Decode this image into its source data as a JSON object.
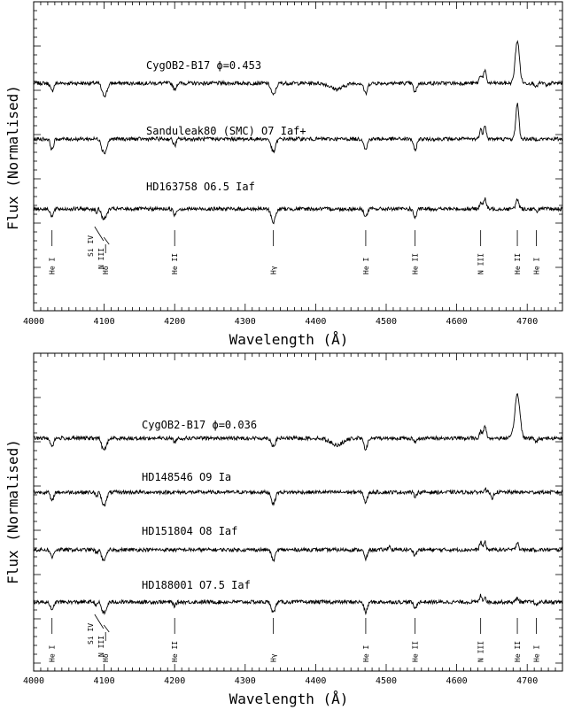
{
  "chart_data": [
    {
      "type": "line",
      "xlabel": "Wavelength (Å)",
      "ylabel": "Flux (Normalised)",
      "xlim": [
        4000,
        4750
      ],
      "x_ticks": [
        "4000",
        "4100",
        "4200",
        "4300",
        "4400",
        "4500",
        "4600",
        "4700"
      ],
      "grid": false,
      "series": [
        {
          "name": "CygOB2-B17 ϕ=0.453",
          "continuum": 1.0,
          "features": [
            {
              "x": 4026,
              "depth": -0.6,
              "width": 2.2
            },
            {
              "x": 4097,
              "depth": -0.25,
              "width": 1.6
            },
            {
              "x": 4101,
              "depth": -0.9,
              "width": 3.2
            },
            {
              "x": 4200,
              "depth": -0.5,
              "width": 2.0
            },
            {
              "x": 4340,
              "depth": -0.9,
              "width": 3.2
            },
            {
              "x": 4430,
              "depth": -0.45,
              "width": 9.0
            },
            {
              "x": 4471,
              "depth": -0.8,
              "width": 2.4
            },
            {
              "x": 4541,
              "depth": -0.7,
              "width": 2.2
            },
            {
              "x": 4634,
              "depth": 0.6,
              "width": 2.0
            },
            {
              "x": 4640,
              "depth": 0.9,
              "width": 2.0
            },
            {
              "x": 4686,
              "depth": 3.2,
              "width": 3.0
            },
            {
              "x": 4713,
              "depth": -0.3,
              "width": 1.6
            },
            {
              "x": 4728,
              "depth": -0.25,
              "width": 1.8
            }
          ]
        },
        {
          "name": "Sanduleak80 (SMC) O7 Iaf+",
          "continuum": 0.0,
          "features": [
            {
              "x": 4026,
              "depth": -0.8,
              "width": 2.2
            },
            {
              "x": 4097,
              "depth": -0.35,
              "width": 1.6
            },
            {
              "x": 4101,
              "depth": -1.0,
              "width": 3.0
            },
            {
              "x": 4200,
              "depth": -0.5,
              "width": 2.0
            },
            {
              "x": 4340,
              "depth": -1.0,
              "width": 3.0
            },
            {
              "x": 4471,
              "depth": -0.8,
              "width": 2.2
            },
            {
              "x": 4541,
              "depth": -0.9,
              "width": 2.2
            },
            {
              "x": 4634,
              "depth": 0.7,
              "width": 1.8
            },
            {
              "x": 4640,
              "depth": 1.1,
              "width": 1.8
            },
            {
              "x": 4686,
              "depth": 2.7,
              "width": 2.2
            }
          ]
        },
        {
          "name": "HD163758 O6.5 Iaf",
          "continuum": -1.0,
          "features": [
            {
              "x": 4026,
              "depth": -0.6,
              "width": 2.0
            },
            {
              "x": 4089,
              "depth": -0.3,
              "width": 1.4
            },
            {
              "x": 4097,
              "depth": -0.35,
              "width": 1.6
            },
            {
              "x": 4101,
              "depth": -0.7,
              "width": 2.8
            },
            {
              "x": 4200,
              "depth": -0.45,
              "width": 2.0
            },
            {
              "x": 4340,
              "depth": -1.0,
              "width": 3.0
            },
            {
              "x": 4471,
              "depth": -0.6,
              "width": 2.2
            },
            {
              "x": 4541,
              "depth": -0.65,
              "width": 2.2
            },
            {
              "x": 4634,
              "depth": 0.5,
              "width": 1.8
            },
            {
              "x": 4640,
              "depth": 0.8,
              "width": 1.8
            },
            {
              "x": 4686,
              "depth": 0.7,
              "width": 2.2
            },
            {
              "x": 4713,
              "depth": -0.2,
              "width": 1.6
            }
          ]
        }
      ],
      "line_ids": [
        {
          "x": 4026,
          "label": "He I"
        },
        {
          "x": 4089,
          "label": "Si IV"
        },
        {
          "x": 4097,
          "label": "N III"
        },
        {
          "x": 4102,
          "label": "Hδ"
        },
        {
          "x": 4200,
          "label": "He II"
        },
        {
          "x": 4340,
          "label": "Hγ"
        },
        {
          "x": 4471,
          "label": "He I"
        },
        {
          "x": 4541,
          "label": "He II"
        },
        {
          "x": 4634,
          "label": "N III"
        },
        {
          "x": 4686,
          "label": "He II"
        },
        {
          "x": 4713,
          "label": "He I"
        }
      ]
    },
    {
      "type": "line",
      "xlabel": "Wavelength (Å)",
      "ylabel": "Flux (Normalised)",
      "xlim": [
        4000,
        4750
      ],
      "x_ticks": [
        "4000",
        "4100",
        "4200",
        "4300",
        "4400",
        "4500",
        "4600",
        "4700"
      ],
      "grid": false,
      "series": [
        {
          "name": "CygOB2-B17 ϕ=0.036",
          "continuum": 1.0,
          "features": [
            {
              "x": 4026,
              "depth": -0.6,
              "width": 2.2
            },
            {
              "x": 4097,
              "depth": -0.3,
              "width": 1.6
            },
            {
              "x": 4101,
              "depth": -0.8,
              "width": 3.0
            },
            {
              "x": 4200,
              "depth": -0.3,
              "width": 1.8
            },
            {
              "x": 4340,
              "depth": -0.6,
              "width": 2.8
            },
            {
              "x": 4430,
              "depth": -0.5,
              "width": 9.0
            },
            {
              "x": 4471,
              "depth": -0.8,
              "width": 2.6
            },
            {
              "x": 4541,
              "depth": -0.3,
              "width": 2.2
            },
            {
              "x": 4634,
              "depth": 0.5,
              "width": 1.8
            },
            {
              "x": 4640,
              "depth": 0.9,
              "width": 2.0
            },
            {
              "x": 4686,
              "depth": 3.3,
              "width": 3.6
            },
            {
              "x": 4713,
              "depth": -0.3,
              "width": 1.6
            }
          ]
        },
        {
          "name": "HD148546 O9 Ia",
          "continuum": 0.0,
          "features": [
            {
              "x": 4026,
              "depth": -0.7,
              "width": 2.0
            },
            {
              "x": 4089,
              "depth": -0.4,
              "width": 1.4
            },
            {
              "x": 4097,
              "depth": -0.45,
              "width": 1.6
            },
            {
              "x": 4101,
              "depth": -0.9,
              "width": 2.6
            },
            {
              "x": 4340,
              "depth": -0.9,
              "width": 2.6
            },
            {
              "x": 4471,
              "depth": -0.8,
              "width": 2.2
            },
            {
              "x": 4541,
              "depth": -0.3,
              "width": 1.8
            },
            {
              "x": 4640,
              "depth": 0.3,
              "width": 1.6
            },
            {
              "x": 4650,
              "depth": -0.5,
              "width": 2.0
            }
          ]
        },
        {
          "name": "HD151804  O8 Iaf",
          "continuum": -1.0,
          "features": [
            {
              "x": 4026,
              "depth": -0.6,
              "width": 2.0
            },
            {
              "x": 4089,
              "depth": -0.3,
              "width": 1.4
            },
            {
              "x": 4097,
              "depth": -0.4,
              "width": 1.6
            },
            {
              "x": 4101,
              "depth": -0.7,
              "width": 2.6
            },
            {
              "x": 4340,
              "depth": -0.8,
              "width": 2.6
            },
            {
              "x": 4471,
              "depth": -0.7,
              "width": 2.2
            },
            {
              "x": 4504,
              "depth": 0.3,
              "width": 1.6
            },
            {
              "x": 4541,
              "depth": -0.4,
              "width": 2.0
            },
            {
              "x": 4634,
              "depth": 0.6,
              "width": 1.6
            },
            {
              "x": 4640,
              "depth": 0.6,
              "width": 1.6
            },
            {
              "x": 4686,
              "depth": 0.6,
              "width": 1.8
            }
          ]
        },
        {
          "name": "HD188001 O7.5 Iaf",
          "continuum": -2.0,
          "features": [
            {
              "x": 4026,
              "depth": -0.7,
              "width": 2.0
            },
            {
              "x": 4089,
              "depth": -0.3,
              "width": 1.4
            },
            {
              "x": 4097,
              "depth": -0.4,
              "width": 1.6
            },
            {
              "x": 4101,
              "depth": -0.8,
              "width": 2.6
            },
            {
              "x": 4200,
              "depth": -0.3,
              "width": 1.8
            },
            {
              "x": 4340,
              "depth": -0.8,
              "width": 2.6
            },
            {
              "x": 4471,
              "depth": -0.8,
              "width": 2.2
            },
            {
              "x": 4541,
              "depth": -0.5,
              "width": 2.0
            },
            {
              "x": 4634,
              "depth": 0.5,
              "width": 1.6
            },
            {
              "x": 4640,
              "depth": 0.4,
              "width": 1.6
            },
            {
              "x": 4686,
              "depth": 0.3,
              "width": 1.8
            },
            {
              "x": 4713,
              "depth": -0.3,
              "width": 1.6
            }
          ]
        }
      ],
      "line_ids": [
        {
          "x": 4026,
          "label": "He I"
        },
        {
          "x": 4089,
          "label": "Si IV"
        },
        {
          "x": 4097,
          "label": "N III"
        },
        {
          "x": 4102,
          "label": "Hδ"
        },
        {
          "x": 4200,
          "label": "He II"
        },
        {
          "x": 4340,
          "label": "Hγ"
        },
        {
          "x": 4471,
          "label": "He I"
        },
        {
          "x": 4541,
          "label": "He II"
        },
        {
          "x": 4634,
          "label": "N III"
        },
        {
          "x": 4686,
          "label": "He II"
        },
        {
          "x": 4713,
          "label": "He I"
        }
      ]
    }
  ]
}
